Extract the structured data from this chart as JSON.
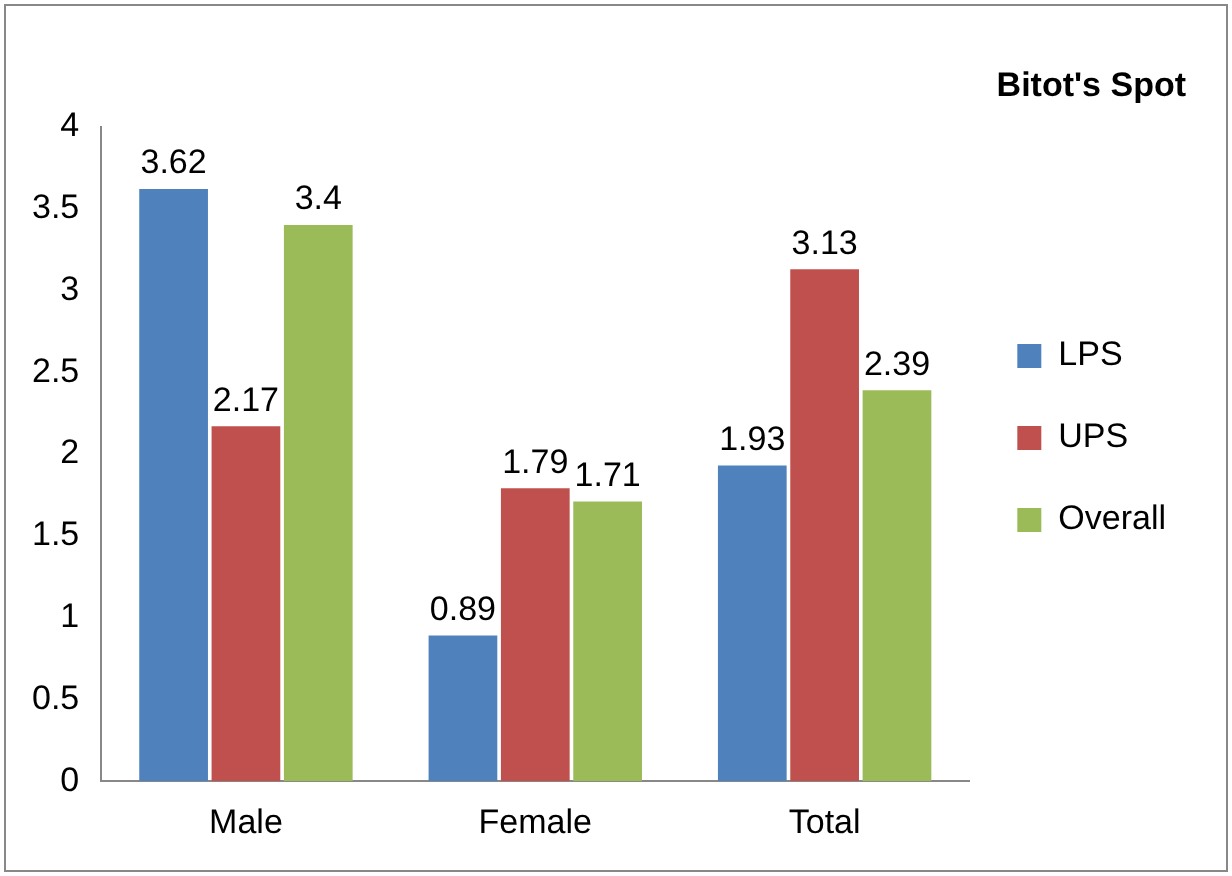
{
  "chart_data": {
    "type": "bar",
    "title": "Bitot's Spot",
    "categories": [
      "Male",
      "Female",
      "Total"
    ],
    "series": [
      {
        "name": "LPS",
        "color": "#4f81bd",
        "values": [
          3.62,
          0.89,
          1.93
        ]
      },
      {
        "name": "UPS",
        "color": "#c0504d",
        "values": [
          2.17,
          1.79,
          3.13
        ]
      },
      {
        "name": "Overall",
        "color": "#9bbb59",
        "values": [
          3.4,
          1.71,
          2.39
        ]
      }
    ],
    "ylim": [
      0,
      4
    ],
    "yticks": [
      0,
      0.5,
      1,
      1.5,
      2,
      2.5,
      3,
      3.5,
      4
    ],
    "grid": false,
    "legend": "right",
    "data_labels": true
  }
}
